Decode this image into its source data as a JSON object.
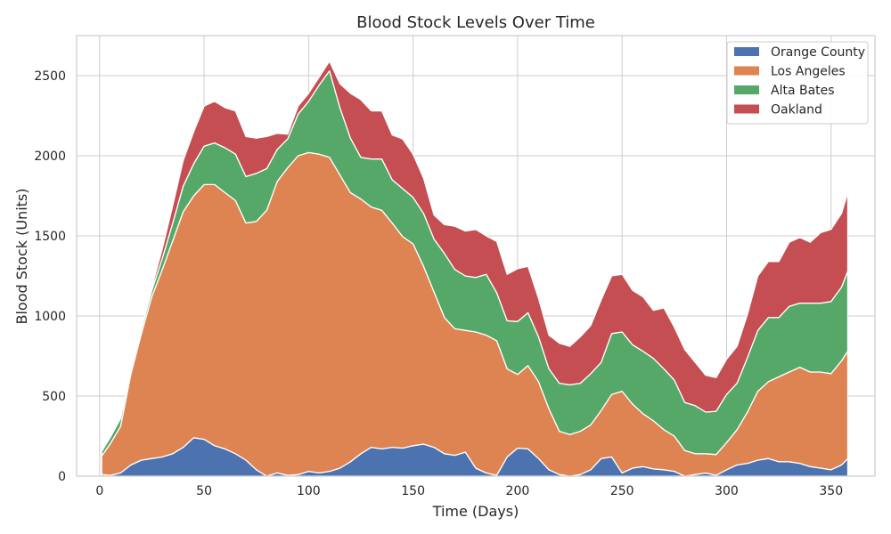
{
  "chart_data": {
    "type": "area",
    "stacked": true,
    "title": "Blood Stock Levels Over Time",
    "xlabel": "Time (Days)",
    "ylabel": "Blood Stock (Units)",
    "xlim": [
      -11,
      371
    ],
    "ylim": [
      0,
      2750
    ],
    "xticks": [
      0,
      50,
      100,
      150,
      200,
      250,
      300,
      350
    ],
    "yticks": [
      0,
      500,
      1000,
      1500,
      2000,
      2500
    ],
    "grid": true,
    "legend_position": "top-right",
    "x": [
      1,
      5,
      10,
      15,
      20,
      25,
      30,
      35,
      40,
      45,
      50,
      55,
      60,
      65,
      70,
      75,
      80,
      85,
      90,
      95,
      100,
      105,
      110,
      115,
      120,
      125,
      130,
      135,
      140,
      145,
      150,
      155,
      160,
      165,
      170,
      175,
      180,
      185,
      190,
      195,
      200,
      205,
      210,
      215,
      220,
      225,
      230,
      235,
      240,
      245,
      250,
      255,
      260,
      265,
      270,
      275,
      280,
      285,
      290,
      295,
      300,
      305,
      310,
      315,
      320,
      325,
      330,
      335,
      340,
      345,
      350,
      355,
      358
    ],
    "series": [
      {
        "name": "Orange County",
        "color": "#4c72b0",
        "values": [
          10,
          5,
          20,
          70,
          100,
          110,
          120,
          140,
          180,
          240,
          230,
          190,
          170,
          140,
          100,
          40,
          0,
          20,
          5,
          10,
          30,
          20,
          30,
          50,
          90,
          140,
          180,
          170,
          180,
          175,
          190,
          200,
          180,
          140,
          130,
          150,
          50,
          20,
          5,
          120,
          175,
          170,
          110,
          40,
          10,
          0,
          10,
          40,
          110,
          120,
          20,
          50,
          60,
          45,
          40,
          30,
          0,
          10,
          20,
          5,
          40,
          70,
          80,
          100,
          110,
          90,
          90,
          80,
          60,
          50,
          40,
          70,
          110
        ]
      },
      {
        "name": "Los Angeles",
        "color": "#dd8452",
        "values": [
          115,
          195,
          290,
          570,
          790,
          1010,
          1170,
          1330,
          1470,
          1510,
          1590,
          1630,
          1600,
          1580,
          1480,
          1550,
          1660,
          1820,
          1920,
          1990,
          1990,
          1990,
          1960,
          1830,
          1680,
          1590,
          1500,
          1490,
          1400,
          1320,
          1260,
          1110,
          970,
          850,
          790,
          760,
          850,
          860,
          840,
          550,
          460,
          520,
          480,
          380,
          270,
          260,
          270,
          280,
          300,
          390,
          510,
          400,
          330,
          300,
          250,
          220,
          160,
          130,
          120,
          130,
          170,
          220,
          320,
          430,
          480,
          530,
          560,
          600,
          590,
          600,
          600,
          650,
          670
        ]
      },
      {
        "name": "Alta Bates",
        "color": "#55a868",
        "values": [
          30,
          40,
          50,
          20,
          30,
          40,
          70,
          110,
          160,
          200,
          240,
          260,
          280,
          290,
          290,
          300,
          260,
          200,
          180,
          260,
          320,
          430,
          540,
          420,
          340,
          260,
          300,
          320,
          270,
          300,
          290,
          330,
          330,
          400,
          370,
          340,
          340,
          380,
          300,
          300,
          330,
          330,
          280,
          250,
          300,
          310,
          300,
          320,
          300,
          380,
          370,
          370,
          390,
          390,
          380,
          350,
          300,
          300,
          260,
          270,
          300,
          290,
          340,
          380,
          400,
          370,
          410,
          400,
          430,
          430,
          450,
          460,
          500
        ]
      },
      {
        "name": "Oakland",
        "color": "#c44e52",
        "values": [
          0,
          0,
          0,
          0,
          10,
          20,
          60,
          110,
          160,
          200,
          250,
          260,
          250,
          270,
          250,
          220,
          200,
          100,
          30,
          50,
          50,
          50,
          60,
          150,
          280,
          360,
          300,
          300,
          280,
          310,
          270,
          220,
          150,
          180,
          270,
          280,
          300,
          240,
          320,
          290,
          330,
          290,
          240,
          210,
          250,
          240,
          290,
          300,
          390,
          360,
          360,
          340,
          340,
          300,
          380,
          330,
          330,
          270,
          230,
          210,
          220,
          230,
          270,
          340,
          350,
          350,
          400,
          410,
          380,
          440,
          450,
          460,
          490
        ]
      }
    ]
  }
}
